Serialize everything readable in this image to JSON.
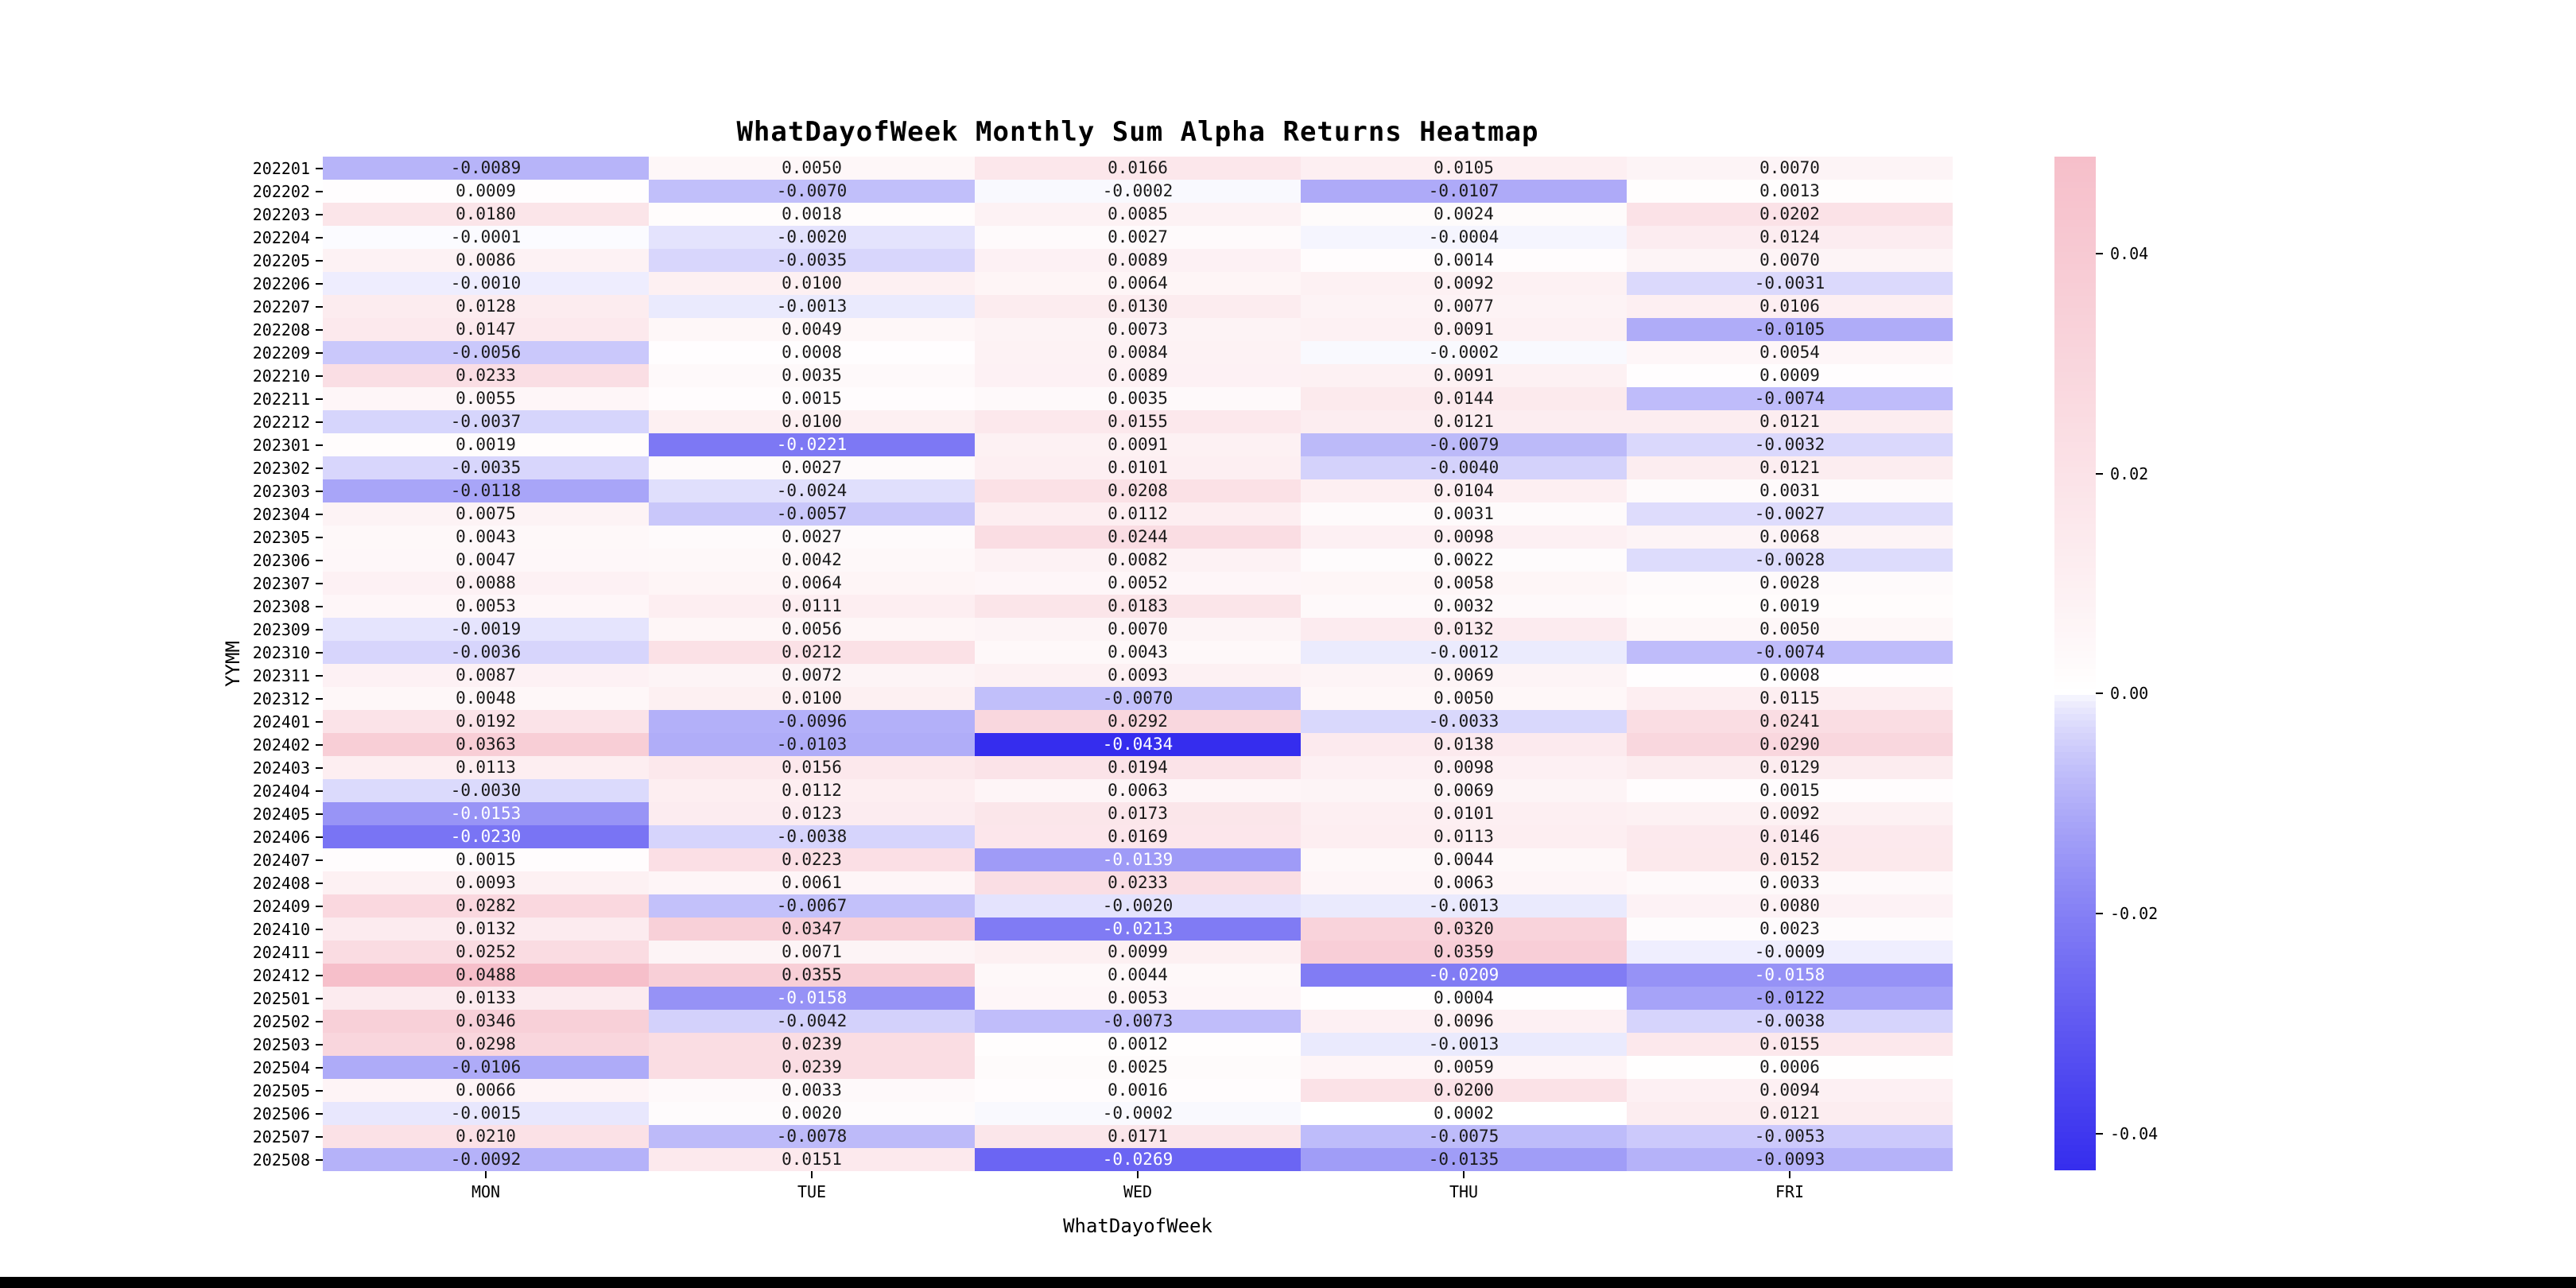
{
  "chart_data": {
    "type": "heatmap",
    "title": "WhatDayofWeek Monthly Sum Alpha Returns Heatmap",
    "xlabel": "WhatDayofWeek",
    "ylabel": "YYMM",
    "columns": [
      "MON",
      "TUE",
      "WED",
      "THU",
      "FRI"
    ],
    "rows": [
      "202201",
      "202202",
      "202203",
      "202204",
      "202205",
      "202206",
      "202207",
      "202208",
      "202209",
      "202210",
      "202211",
      "202212",
      "202301",
      "202302",
      "202303",
      "202304",
      "202305",
      "202306",
      "202307",
      "202308",
      "202309",
      "202310",
      "202311",
      "202312",
      "202401",
      "202402",
      "202403",
      "202404",
      "202405",
      "202406",
      "202407",
      "202408",
      "202409",
      "202410",
      "202411",
      "202412",
      "202501",
      "202502",
      "202503",
      "202504",
      "202505",
      "202506",
      "202507",
      "202508"
    ],
    "values": [
      [
        -0.0089,
        0.005,
        0.0166,
        0.0105,
        0.007
      ],
      [
        0.0009,
        -0.007,
        -0.0002,
        -0.0107,
        0.0013
      ],
      [
        0.018,
        0.0018,
        0.0085,
        0.0024,
        0.0202
      ],
      [
        -0.0001,
        -0.002,
        0.0027,
        -0.0004,
        0.0124
      ],
      [
        0.0086,
        -0.0035,
        0.0089,
        0.0014,
        0.007
      ],
      [
        -0.001,
        0.01,
        0.0064,
        0.0092,
        -0.0031
      ],
      [
        0.0128,
        -0.0013,
        0.013,
        0.0077,
        0.0106
      ],
      [
        0.0147,
        0.0049,
        0.0073,
        0.0091,
        -0.0105
      ],
      [
        -0.0056,
        0.0008,
        0.0084,
        -0.0002,
        0.0054
      ],
      [
        0.0233,
        0.0035,
        0.0089,
        0.0091,
        0.0009
      ],
      [
        0.0055,
        0.0015,
        0.0035,
        0.0144,
        -0.0074
      ],
      [
        -0.0037,
        0.01,
        0.0155,
        0.0121,
        0.0121
      ],
      [
        0.0019,
        -0.0221,
        0.0091,
        -0.0079,
        -0.0032
      ],
      [
        -0.0035,
        0.0027,
        0.0101,
        -0.004,
        0.0121
      ],
      [
        -0.0118,
        -0.0024,
        0.0208,
        0.0104,
        0.0031
      ],
      [
        0.0075,
        -0.0057,
        0.0112,
        0.0031,
        -0.0027
      ],
      [
        0.0043,
        0.0027,
        0.0244,
        0.0098,
        0.0068
      ],
      [
        0.0047,
        0.0042,
        0.0082,
        0.0022,
        -0.0028
      ],
      [
        0.0088,
        0.0064,
        0.0052,
        0.0058,
        0.0028
      ],
      [
        0.0053,
        0.0111,
        0.0183,
        0.0032,
        0.0019
      ],
      [
        -0.0019,
        0.0056,
        0.007,
        0.0132,
        0.005
      ],
      [
        -0.0036,
        0.0212,
        0.0043,
        -0.0012,
        -0.0074
      ],
      [
        0.0087,
        0.0072,
        0.0093,
        0.0069,
        0.0008
      ],
      [
        0.0048,
        0.01,
        -0.007,
        0.005,
        0.0115
      ],
      [
        0.0192,
        -0.0096,
        0.0292,
        -0.0033,
        0.0241
      ],
      [
        0.0363,
        -0.0103,
        -0.0434,
        0.0138,
        0.029
      ],
      [
        0.0113,
        0.0156,
        0.0194,
        0.0098,
        0.0129
      ],
      [
        -0.003,
        0.0112,
        0.0063,
        0.0069,
        0.0015
      ],
      [
        -0.0153,
        0.0123,
        0.0173,
        0.0101,
        0.0092
      ],
      [
        -0.023,
        -0.0038,
        0.0169,
        0.0113,
        0.0146
      ],
      [
        0.0015,
        0.0223,
        -0.0139,
        0.0044,
        0.0152
      ],
      [
        0.0093,
        0.0061,
        0.0233,
        0.0063,
        0.0033
      ],
      [
        0.0282,
        -0.0067,
        -0.002,
        -0.0013,
        0.008
      ],
      [
        0.0132,
        0.0347,
        -0.0213,
        0.032,
        0.0023
      ],
      [
        0.0252,
        0.0071,
        0.0099,
        0.0359,
        -0.0009
      ],
      [
        0.0488,
        0.0355,
        0.0044,
        -0.0209,
        -0.0158
      ],
      [
        0.0133,
        -0.0158,
        0.0053,
        0.0004,
        -0.0122
      ],
      [
        0.0346,
        -0.0042,
        -0.0073,
        0.0096,
        -0.0038
      ],
      [
        0.0298,
        0.0239,
        0.0012,
        -0.0013,
        0.0155
      ],
      [
        -0.0106,
        0.0239,
        0.0025,
        0.0059,
        0.0006
      ],
      [
        0.0066,
        0.0033,
        0.0016,
        0.02,
        0.0094
      ],
      [
        -0.0015,
        0.002,
        -0.0002,
        0.0002,
        0.0121
      ],
      [
        0.021,
        -0.0078,
        0.0171,
        -0.0075,
        -0.0053
      ],
      [
        -0.0092,
        0.0151,
        -0.0269,
        -0.0135,
        -0.0093
      ]
    ],
    "value_decimals": 4,
    "vmin": -0.0434,
    "vmax": 0.0488,
    "grid": false,
    "legend": "none",
    "colorbar": {
      "position": "right",
      "ticks": [
        {
          "label": "0.04",
          "value": 0.04
        },
        {
          "label": "0.02",
          "value": 0.02
        },
        {
          "label": "0.00",
          "value": 0.0
        },
        {
          "label": "-0.02",
          "value": -0.02
        },
        {
          "label": "-0.04",
          "value": -0.04
        }
      ]
    },
    "colors": {
      "positive_max": "#f6bfca",
      "negative_max": "#352dee",
      "zero": "#ffffff",
      "cell_text_dark": "#1a1a1a",
      "cell_text_light": "#ffffff",
      "axis_text": "#000000"
    },
    "white_text_threshold": -0.0138
  }
}
